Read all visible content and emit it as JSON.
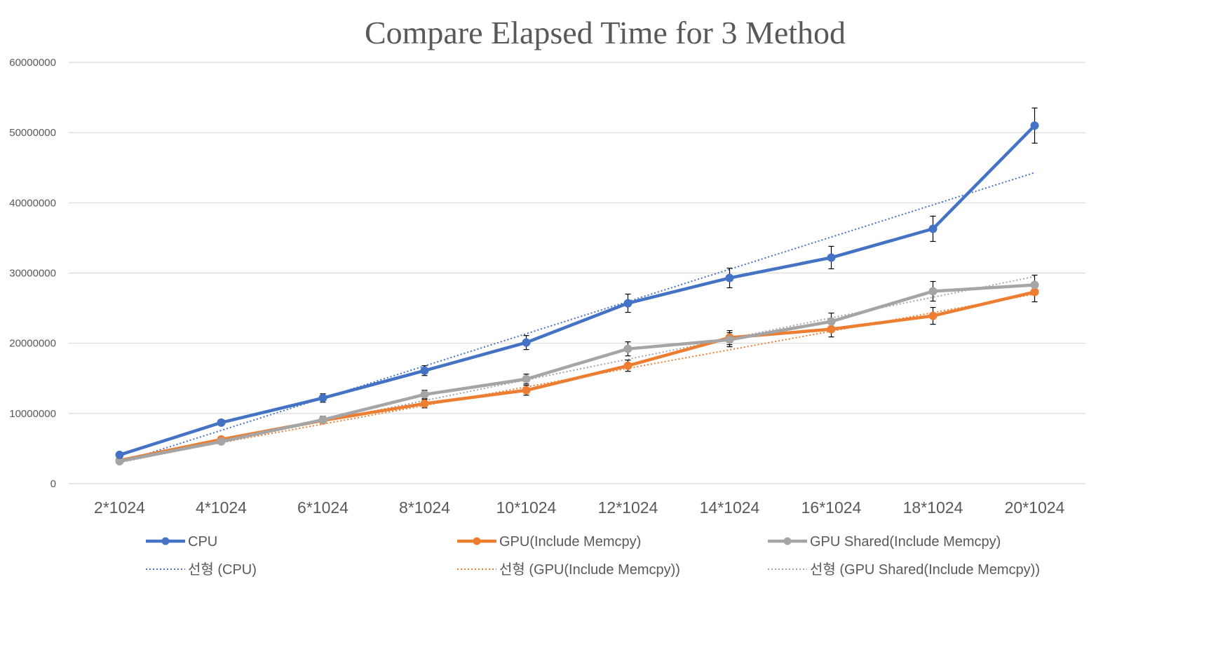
{
  "chart_data": {
    "type": "line",
    "title": "Compare Elapsed Time for 3 Method",
    "xlabel": "",
    "ylabel": "",
    "categories": [
      "2*1024",
      "4*1024",
      "6*1024",
      "8*1024",
      "10*1024",
      "12*1024",
      "14*1024",
      "16*1024",
      "18*1024",
      "20*1024"
    ],
    "ylim": [
      0,
      60000000
    ],
    "yticks": [
      "0",
      "10000000",
      "20000000",
      "30000000",
      "40000000",
      "50000000",
      "60000000"
    ],
    "grid": true,
    "legend_position": "bottom",
    "series": [
      {
        "name": "CPU",
        "color": "#4472C4",
        "marker": "circle",
        "values": [
          4100000,
          8700000,
          12200000,
          16100000,
          20100000,
          25700000,
          29300000,
          32200000,
          36300000,
          51000000
        ],
        "error": [
          300000,
          400000,
          600000,
          700000,
          1000000,
          1300000,
          1400000,
          1600000,
          1800000,
          2500000
        ]
      },
      {
        "name": "GPU(Include Memcpy)",
        "color": "#ED7D31",
        "marker": "circle",
        "values": [
          3300000,
          6300000,
          9000000,
          11400000,
          13300000,
          16800000,
          20800000,
          22000000,
          23900000,
          27300000
        ],
        "error": [
          200000,
          300000,
          400000,
          600000,
          700000,
          800000,
          1000000,
          1100000,
          1200000,
          1400000
        ]
      },
      {
        "name": "GPU Shared(Include Memcpy)",
        "color": "#A5A5A5",
        "marker": "circle",
        "values": [
          3200000,
          6000000,
          9100000,
          12700000,
          14900000,
          19200000,
          20500000,
          23100000,
          27400000,
          28300000
        ],
        "error": [
          200000,
          300000,
          500000,
          600000,
          700000,
          1000000,
          1000000,
          1200000,
          1400000,
          1400000
        ]
      }
    ],
    "trendlines": [
      {
        "name": "선형 (CPU)",
        "color": "#4472C4",
        "style": "dotted",
        "start": 3000000,
        "end": 44300000
      },
      {
        "name": "선형 (GPU(Include Memcpy))",
        "color": "#ED7D31",
        "style": "dotted",
        "start": 3200000,
        "end": 27000000
      },
      {
        "name": "선형 (GPU Shared(Include Memcpy))",
        "color": "#A5A5A5",
        "style": "dotted",
        "start": 3000000,
        "end": 29500000
      }
    ]
  }
}
